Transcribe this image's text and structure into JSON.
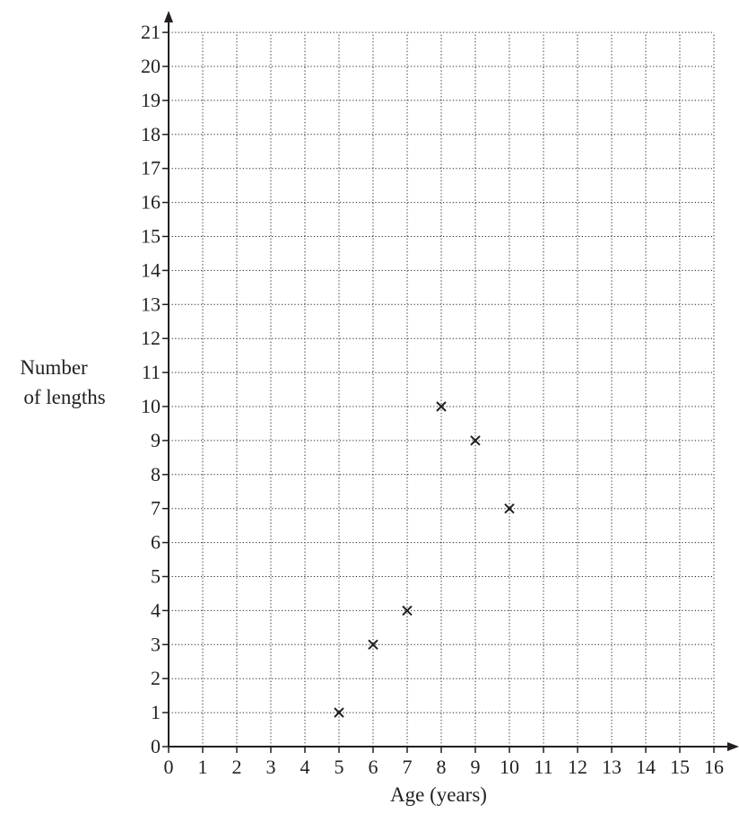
{
  "chart_data": {
    "type": "scatter",
    "title": "",
    "xlabel": "Age (years)",
    "ylabel_lines": [
      "Number",
      "of lengths"
    ],
    "xlim": [
      0,
      16
    ],
    "ylim": [
      0,
      21
    ],
    "x_ticks": [
      0,
      1,
      2,
      3,
      4,
      5,
      6,
      7,
      8,
      9,
      10,
      11,
      12,
      13,
      14,
      15,
      16
    ],
    "y_ticks": [
      0,
      1,
      2,
      3,
      4,
      5,
      6,
      7,
      8,
      9,
      10,
      11,
      12,
      13,
      14,
      15,
      16,
      17,
      18,
      19,
      20,
      21
    ],
    "grid": true,
    "marker": "x",
    "points": [
      {
        "x": 5,
        "y": 1
      },
      {
        "x": 6,
        "y": 3
      },
      {
        "x": 7,
        "y": 4
      },
      {
        "x": 8,
        "y": 10
      },
      {
        "x": 9,
        "y": 9
      },
      {
        "x": 10,
        "y": 7
      }
    ],
    "colors": {
      "ink": "#231f20",
      "grid": "#231f20"
    }
  }
}
